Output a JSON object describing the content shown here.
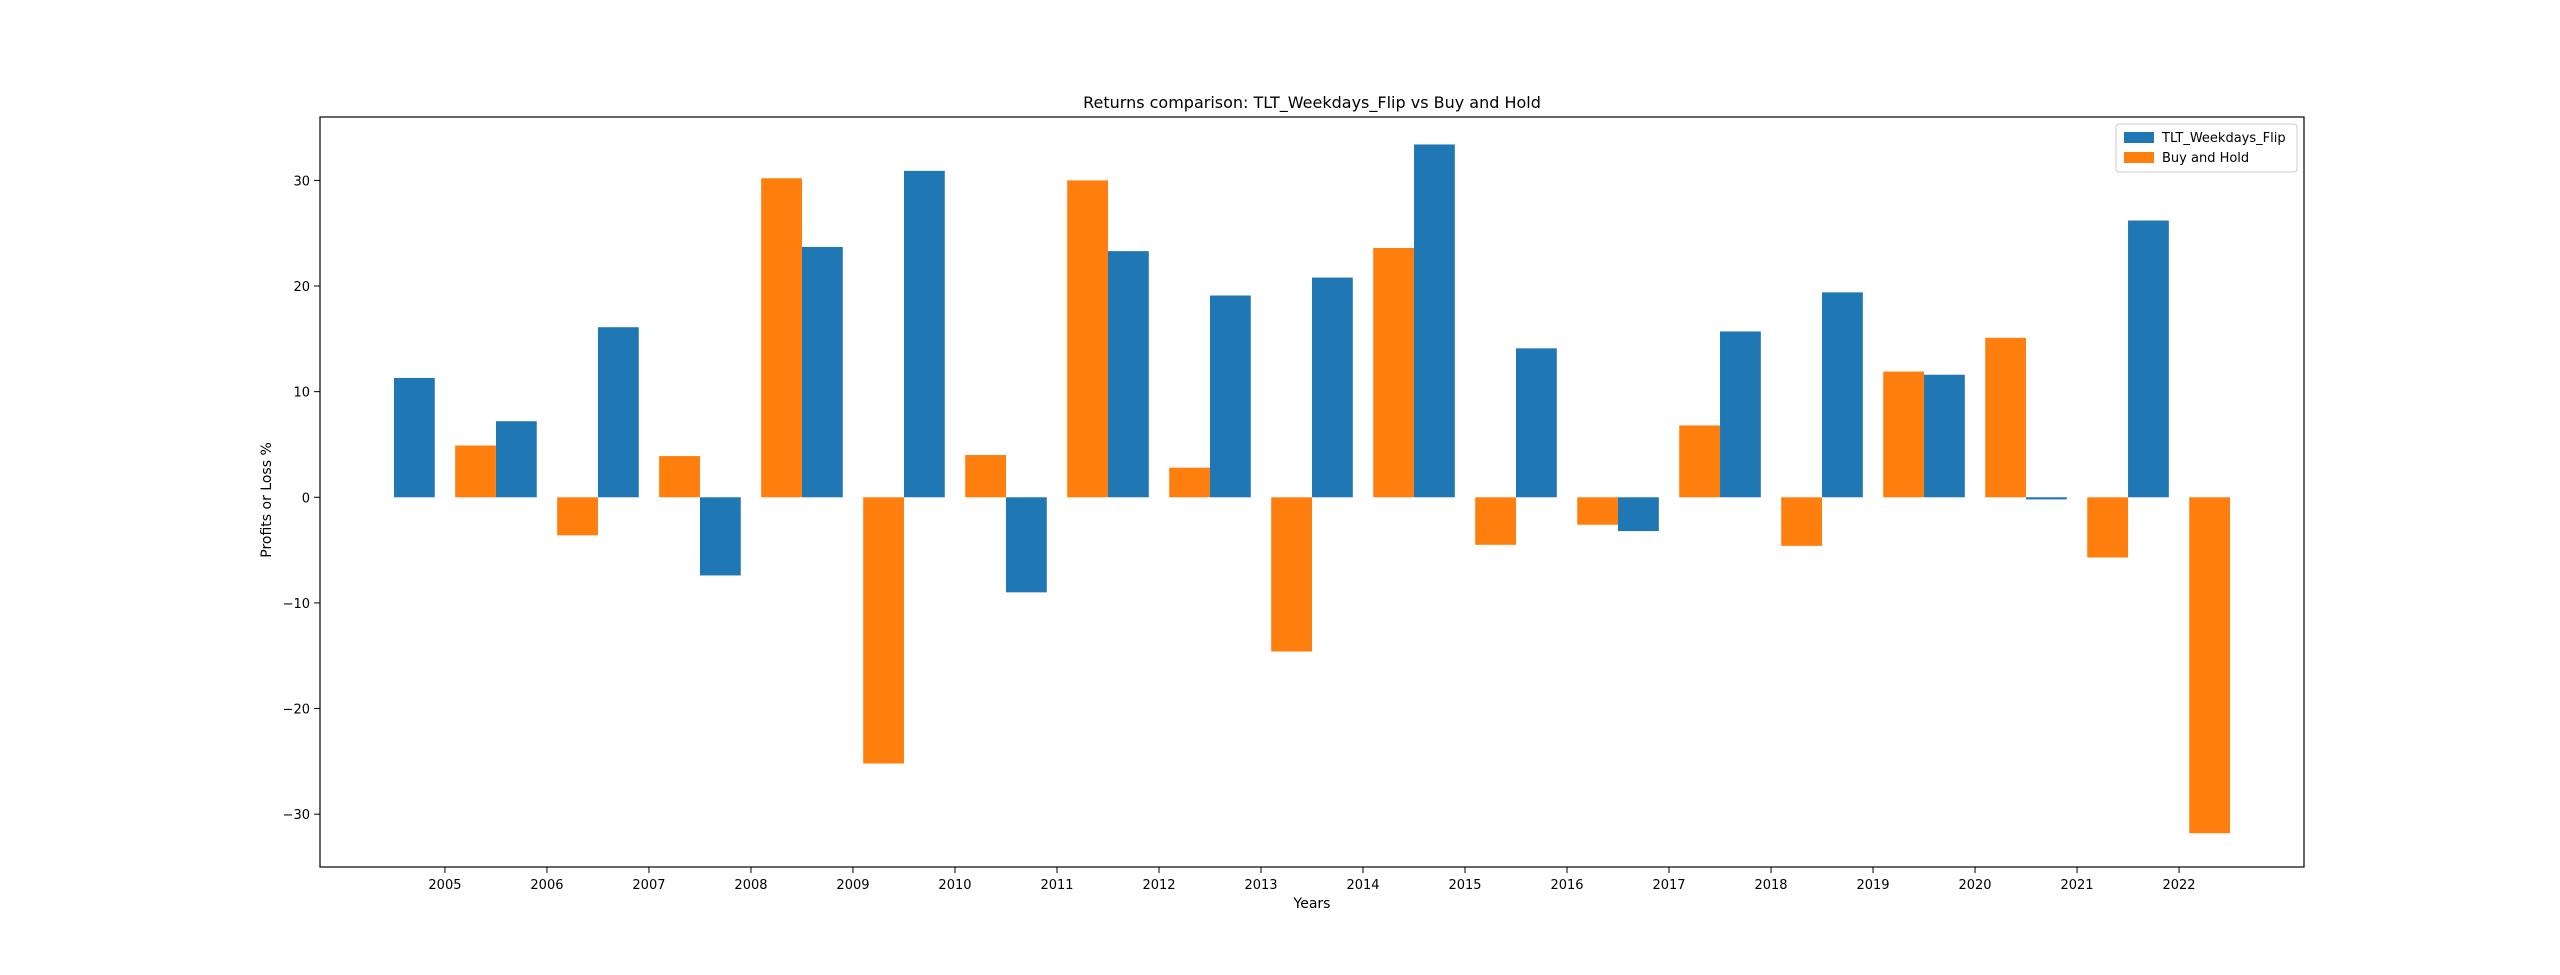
{
  "chart_data": {
    "type": "bar",
    "title": "Returns comparison: TLT_Weekdays_Flip vs Buy and Hold",
    "xlabel": "Years",
    "ylabel": "Profits or Loss %",
    "ylim": [
      -35,
      36
    ],
    "yticks": [
      -30,
      -20,
      -10,
      0,
      10,
      20,
      30
    ],
    "grid": false,
    "legend_position": "top-right",
    "categories": [
      "2005",
      "2006",
      "2007",
      "2008",
      "2009",
      "2010",
      "2011",
      "2012",
      "2013",
      "2014",
      "2015",
      "2016",
      "2017",
      "2018",
      "2019",
      "2020",
      "2021",
      "2022"
    ],
    "series": [
      {
        "name": "TLT_Weekdays_Flip",
        "color": "#1f77b4",
        "values": [
          11.3,
          7.2,
          16.1,
          -7.4,
          23.7,
          30.9,
          -9.0,
          23.3,
          19.1,
          20.8,
          33.4,
          14.1,
          -3.2,
          15.7,
          19.4,
          11.6,
          -0.2,
          26.2
        ]
      },
      {
        "name": "Buy and Hold",
        "color": "#ff7f0e",
        "values": [
          4.9,
          -3.6,
          3.9,
          30.2,
          -25.2,
          4.0,
          30.0,
          2.8,
          -14.6,
          23.6,
          -4.5,
          -2.6,
          6.8,
          -4.6,
          11.9,
          15.1,
          -5.7,
          -31.8
        ]
      }
    ]
  }
}
